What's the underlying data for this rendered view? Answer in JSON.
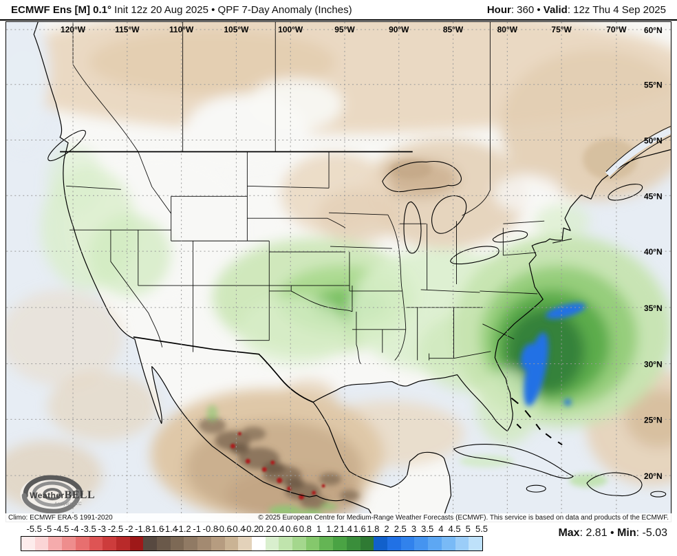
{
  "header": {
    "title_model": "ECMWF Ens [M] 0.1°",
    "title_rest": " Init 12z 20 Aug 2025 • QPF 7-Day Anomaly (Inches)",
    "hour_label": "Hour",
    "hour_value": ": 360",
    "bullet": " • ",
    "valid_label": "Valid",
    "valid_value": ": 12z Thu 4 Sep 2025"
  },
  "map": {
    "lon_labels": [
      "120°W",
      "115°W",
      "110°W",
      "105°W",
      "100°W",
      "95°W",
      "90°W",
      "85°W",
      "80°W",
      "75°W",
      "70°W"
    ],
    "lat_labels": [
      "60°N",
      "55°N",
      "50°N",
      "45°N",
      "40°N",
      "35°N",
      "30°N",
      "25°N",
      "20°N"
    ],
    "climo": "Climo: ECMWF ERA-5 1991-2020",
    "copyright": "© 2025 European Centre for Medium-Range Weather Forecasts (ECMWF). This service is based on data and products of the ECMWF."
  },
  "logo": {
    "weather": "Weather",
    "bell": "BELL",
    "sub": "Analytics LLC"
  },
  "legend": {
    "labels": [
      "-5.5",
      "-5",
      "-4.5",
      "-4",
      "-3.5",
      "-3",
      "-2.5",
      "-2",
      "-1.8",
      "-1.6",
      "-1.4",
      "-1.2",
      "-1",
      "-0.8",
      "-0.6",
      "-0.4",
      "-0.2",
      "0.2",
      "0.4",
      "0.6",
      "0.8",
      "1",
      "1.2",
      "1.4",
      "1.6",
      "1.8",
      "2",
      "2.5",
      "3",
      "3.5",
      "4",
      "4.5",
      "5",
      "5.5"
    ],
    "colors": [
      "#fdecec",
      "#fbd5d6",
      "#f5abac",
      "#ee8d8d",
      "#e76f6f",
      "#de5454",
      "#cd3c3c",
      "#b92a2a",
      "#9e1818",
      "#574940",
      "#6a594a",
      "#7d6955",
      "#907a64",
      "#a38a71",
      "#b69c80",
      "#cab394",
      "#e3d2ba",
      "#ffffff",
      "#d9efce",
      "#c0e4ad",
      "#a4d78d",
      "#85c86c",
      "#64b554",
      "#4aa344",
      "#3a8e3b",
      "#2f7a33",
      "#1160cb",
      "#2171e5",
      "#3182ec",
      "#4594f0",
      "#5da7f3",
      "#79baf6",
      "#9bcdf8",
      "#bee1fa"
    ]
  },
  "stats": {
    "max_label": "Max",
    "max_value": ": 2.81",
    "bullet": " • ",
    "min_label": "Min",
    "min_value": ": -5.03"
  }
}
